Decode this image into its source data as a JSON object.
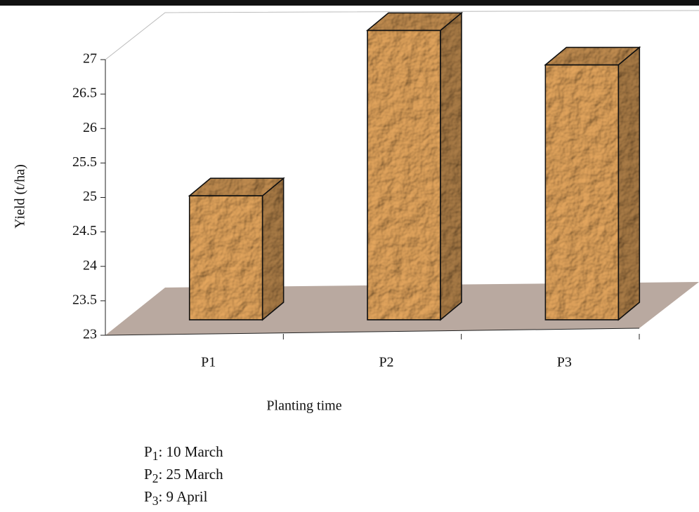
{
  "chart_data": {
    "type": "bar3d",
    "y_label": "Yield (t/ha)",
    "x_label": "Planting time",
    "categories": [
      "P1",
      "P2",
      "P3"
    ],
    "values": [
      24.8,
      27.2,
      26.7
    ],
    "color": "#dca05a",
    "ylim": [
      23,
      27
    ],
    "yticks": [
      23,
      23.5,
      24,
      24.5,
      25,
      25.5,
      26,
      26.5,
      27
    ],
    "grid": false,
    "notes": [
      {
        "label": "P",
        "sub": "1",
        "text": ": 10 March"
      },
      {
        "label": "P",
        "sub": "2",
        "text": ": 25 March"
      },
      {
        "label": "P",
        "sub": "3",
        "text": ": 9 April"
      }
    ]
  }
}
